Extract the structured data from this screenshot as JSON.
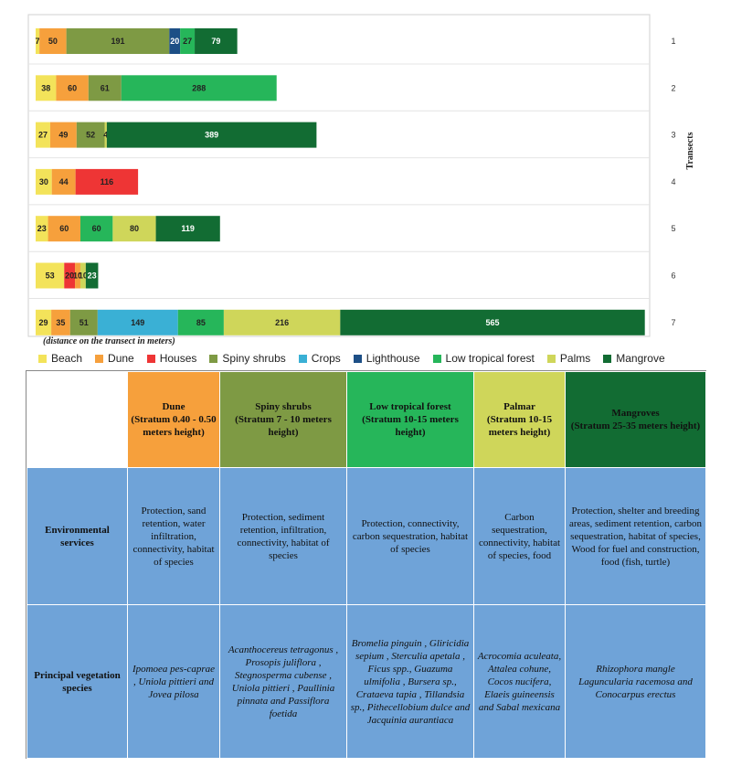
{
  "chart_data": {
    "type": "bar",
    "orientation": "horizontal-stacked",
    "ylabel": "Transects",
    "note": "(distance on the transect in meters)",
    "categories": [
      "Beach",
      "Dune",
      "Houses",
      "Spiny shrubs",
      "Crops",
      "Lighthouse",
      "Low tropical forest",
      "Palms",
      "Mangrove"
    ],
    "colors": {
      "Beach": "#f3e35a",
      "Dune": "#f6a03c",
      "Houses": "#ee3535",
      "Spiny shrubs": "#7e9a44",
      "Crops": "#3ab0d5",
      "Lighthouse": "#1d4f86",
      "Low tropical forest": "#26b65a",
      "Palms": "#cfd65a",
      "Mangrove": "#126c33"
    },
    "xlim": [
      0,
      1160
    ],
    "transects": [
      {
        "name": "1",
        "segments": [
          {
            "category": "Beach",
            "value": 7
          },
          {
            "category": "Dune",
            "value": 50
          },
          {
            "category": "Spiny shrubs",
            "value": 191
          },
          {
            "category": "Lighthouse",
            "value": 20
          },
          {
            "category": "Low tropical forest",
            "value": 27
          },
          {
            "category": "Mangrove",
            "value": 79
          }
        ]
      },
      {
        "name": "2",
        "segments": [
          {
            "category": "Beach",
            "value": 38
          },
          {
            "category": "Dune",
            "value": 60
          },
          {
            "category": "Spiny shrubs",
            "value": 61
          },
          {
            "category": "Low tropical forest",
            "value": 288
          }
        ]
      },
      {
        "name": "3",
        "segments": [
          {
            "category": "Beach",
            "value": 27
          },
          {
            "category": "Dune",
            "value": 49
          },
          {
            "category": "Spiny shrubs",
            "value": 52
          },
          {
            "category": "Palms",
            "value": 4
          },
          {
            "category": "Mangrove",
            "value": 389
          }
        ]
      },
      {
        "name": "4",
        "segments": [
          {
            "category": "Beach",
            "value": 30
          },
          {
            "category": "Dune",
            "value": 44
          },
          {
            "category": "Houses",
            "value": 116
          }
        ]
      },
      {
        "name": "5",
        "segments": [
          {
            "category": "Beach",
            "value": 23
          },
          {
            "category": "Dune",
            "value": 60
          },
          {
            "category": "Low tropical forest",
            "value": 60
          },
          {
            "category": "Palms",
            "value": 80
          },
          {
            "category": "Mangrove",
            "value": 119
          }
        ]
      },
      {
        "name": "6",
        "segments": [
          {
            "category": "Beach",
            "value": 53
          },
          {
            "category": "Houses",
            "value": 20
          },
          {
            "category": "Dune",
            "value": 10
          },
          {
            "category": "Palms",
            "value": 10
          },
          {
            "category": "Mangrove",
            "value": 23
          }
        ]
      },
      {
        "name": "7",
        "segments": [
          {
            "category": "Beach",
            "value": 29
          },
          {
            "category": "Dune",
            "value": 35
          },
          {
            "category": "Spiny shrubs",
            "value": 51
          },
          {
            "category": "Crops",
            "value": 149
          },
          {
            "category": "Low tropical forest",
            "value": 85
          },
          {
            "category": "Palms",
            "value": 216
          },
          {
            "category": "Mangrove",
            "value": 565
          }
        ]
      }
    ]
  },
  "table": {
    "columns": [
      {
        "title": "Dune",
        "subtitle": "(Stratum 0.40 - 0.50 meters height)",
        "color": "#f6a03c"
      },
      {
        "title": "Spiny shrubs",
        "subtitle": "(Stratum 7 - 10 meters height)",
        "color": "#7e9a44"
      },
      {
        "title": "Low tropical forest",
        "subtitle": "(Stratum 10-15 meters height)",
        "color": "#26b65a"
      },
      {
        "title": "Palmar",
        "subtitle": "(Stratum 10-15 meters height)",
        "color": "#cfd65a"
      },
      {
        "title": "Mangroves",
        "subtitle": "(Stratum 25-35 meters height)",
        "color": "#126c33"
      }
    ],
    "rows": [
      {
        "label": "Environmental services",
        "cells": [
          "Protection, sand retention, water infiltration, connectivity, habitat of species",
          "Protection, sediment retention, infiltration, connectivity, habitat of species",
          "Protection, connectivity, carbon sequestration, habitat of species",
          "Carbon sequestration, connectivity, habitat of species, food",
          "Protection, shelter and breeding areas, sediment retention, carbon sequestration, habitat of species, Wood for fuel and construction, food (fish, turtle)"
        ]
      },
      {
        "label": "Principal vegetation species",
        "cells": [
          "Ipomoea pes-caprae , Uniola pittieri and Jovea pilosa",
          "Acanthocereus tetragonus , Prosopis juliflora , Stegnosperma cubense , Uniola pittieri , Paullinia pinnata and Passiflora foetida",
          "Bromelia pinguin , Gliricidia sepium , Sterculia apetala , Ficus spp., Guazuma ulmifolia , Bursera sp., Crataeva tapia , Tillandsia sp., Pithecellobium dulce and Jacquinia aurantiaca",
          "Acrocomia aculeata, Attalea cohune, Cocos nucifera, Elaeis guineensis and Sabal mexicana",
          "Rhizophora mangle Laguncularia racemosa and Conocarpus erectus"
        ]
      }
    ]
  }
}
